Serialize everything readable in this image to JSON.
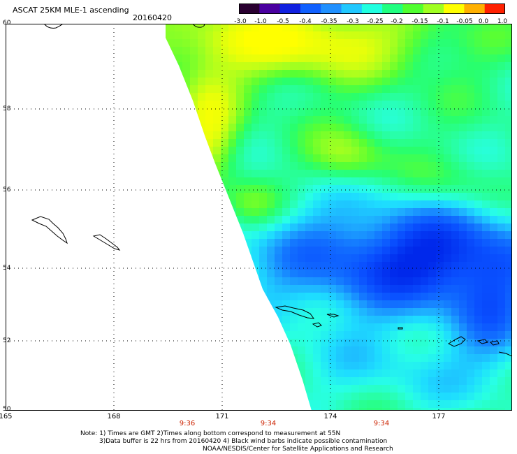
{
  "header": {
    "title": "ASCAT 25KM MLE-1 ascending",
    "date": "20160420"
  },
  "colorbar": {
    "labels": [
      "-3.0",
      "-1.0",
      "-0.5",
      "-0.4",
      "-0.35",
      "-0.3",
      "-0.25",
      "-0.2",
      "-0.15",
      "-0.1",
      "-0.05",
      "0.0",
      "1.0"
    ],
    "colors": [
      "#2a0030",
      "#4a00a0",
      "#1020e0",
      "#1060ff",
      "#2090ff",
      "#20c8ff",
      "#20ffe0",
      "#20ff80",
      "#50ff30",
      "#a0ff20",
      "#ffff00",
      "#ffb000",
      "#ff2000"
    ]
  },
  "map": {
    "lat_labels": [
      "60",
      "58",
      "56",
      "54",
      "52",
      "50"
    ],
    "lon_labels": [
      "165",
      "168",
      "171",
      "174",
      "177"
    ],
    "time_labels": [
      "9:36",
      "9:34",
      "9:34"
    ]
  },
  "notes": {
    "line1": "Note: 1) Times are GMT 2)Times along bottom correspond to measurement at 55N",
    "line2": "3)Data buffer is 22 hrs from 20160420 4) Black wind barbs indicate possible contamination",
    "line3": "NOAA/NESDIS/Center for Satellite Applications and Research"
  },
  "colors": {
    "frame": "#000000",
    "grid": "#000000",
    "time_labels": "#cc2200"
  }
}
